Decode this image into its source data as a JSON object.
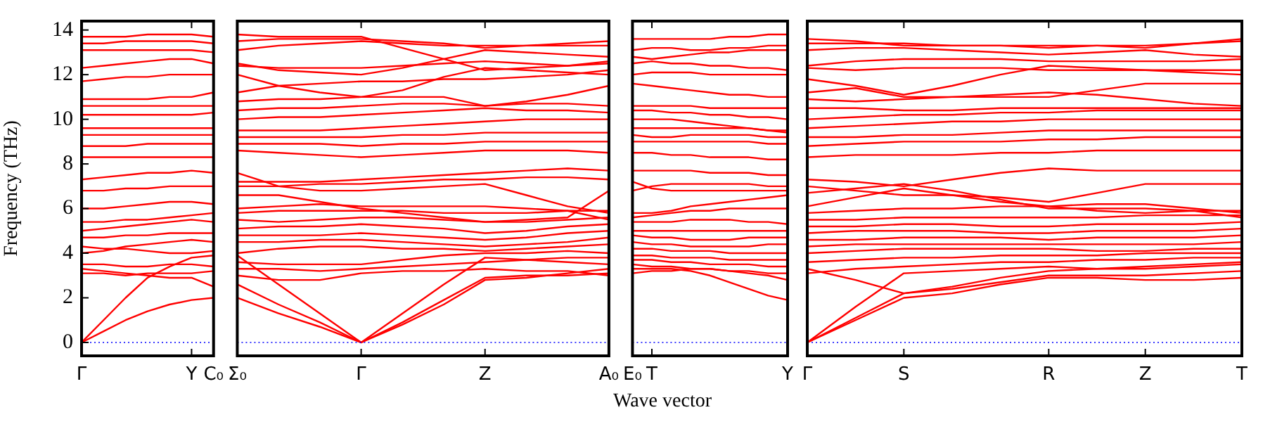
{
  "chart_data": [
    {
      "type": "line",
      "ylabel": "Frequency (THz)",
      "categories": [
        "Γ",
        null,
        null,
        null,
        null,
        "Y",
        "C₀"
      ],
      "ylim": [
        -0.6,
        14.4
      ],
      "yticks": [
        0,
        2,
        4,
        6,
        8,
        10,
        12,
        14
      ],
      "legend": false,
      "grid": false,
      "marker": "none",
      "line_style": "solid",
      "ref_lines": [
        {
          "axis": "y",
          "value": 0,
          "color": "#0000ff",
          "line_style": "dotted"
        }
      ],
      "series": [
        {
          "color": "#ff0000",
          "values": [
            0,
            0.5,
            1.0,
            1.4,
            1.7,
            1.9,
            2.0
          ]
        },
        {
          "color": "#ff0000",
          "values": [
            0,
            1.0,
            2.0,
            2.9,
            3.4,
            3.8,
            3.9
          ]
        },
        {
          "color": "#ff0000",
          "values": [
            3.3,
            3.2,
            3.1,
            3.0,
            2.9,
            2.9,
            2.5
          ]
        },
        {
          "color": "#ff0000",
          "values": [
            3.1,
            3.1,
            3.0,
            3.1,
            3.1,
            3.1,
            3.2
          ]
        },
        {
          "color": "#ff0000",
          "values": [
            3.5,
            3.5,
            3.4,
            3.4,
            3.5,
            3.5,
            3.4
          ]
        },
        {
          "color": "#ff0000",
          "values": [
            4.0,
            4.1,
            4.3,
            4.4,
            4.5,
            4.6,
            4.5
          ]
        },
        {
          "color": "#ff0000",
          "values": [
            4.3,
            4.2,
            4.2,
            4.1,
            4.0,
            4.0,
            4.1
          ]
        },
        {
          "color": "#ff0000",
          "values": [
            4.7,
            4.7,
            4.8,
            4.8,
            4.9,
            4.9,
            4.9
          ]
        },
        {
          "color": "#ff0000",
          "values": [
            5.0,
            5.1,
            5.2,
            5.3,
            5.4,
            5.5,
            5.4
          ]
        },
        {
          "color": "#ff0000",
          "values": [
            5.4,
            5.4,
            5.5,
            5.5,
            5.6,
            5.7,
            5.8
          ]
        },
        {
          "color": "#ff0000",
          "values": [
            6.0,
            6.0,
            6.1,
            6.2,
            6.3,
            6.3,
            6.2
          ]
        },
        {
          "color": "#ff0000",
          "values": [
            6.8,
            6.8,
            6.9,
            6.9,
            7.0,
            7.0,
            7.0
          ]
        },
        {
          "color": "#ff0000",
          "values": [
            7.3,
            7.4,
            7.5,
            7.6,
            7.6,
            7.7,
            7.6
          ]
        },
        {
          "color": "#ff0000",
          "values": [
            8.3,
            8.3,
            8.3,
            8.3,
            8.3,
            8.3,
            8.3
          ]
        },
        {
          "color": "#ff0000",
          "values": [
            8.8,
            8.8,
            8.8,
            8.9,
            8.9,
            8.9,
            8.9
          ]
        },
        {
          "color": "#ff0000",
          "values": [
            9.3,
            9.3,
            9.3,
            9.3,
            9.3,
            9.3,
            9.3
          ]
        },
        {
          "color": "#ff0000",
          "values": [
            9.6,
            9.6,
            9.6,
            9.6,
            9.6,
            9.6,
            9.6
          ]
        },
        {
          "color": "#ff0000",
          "values": [
            10.2,
            10.2,
            10.2,
            10.2,
            10.2,
            10.2,
            10.3
          ]
        },
        {
          "color": "#ff0000",
          "values": [
            10.6,
            10.6,
            10.6,
            10.6,
            10.6,
            10.6,
            10.6
          ]
        },
        {
          "color": "#ff0000",
          "values": [
            10.9,
            10.9,
            10.9,
            10.9,
            11.0,
            11.0,
            11.2
          ]
        },
        {
          "color": "#ff0000",
          "values": [
            11.7,
            11.8,
            11.9,
            11.9,
            12.0,
            12.0,
            12.0
          ]
        },
        {
          "color": "#ff0000",
          "values": [
            12.3,
            12.4,
            12.5,
            12.6,
            12.7,
            12.7,
            12.5
          ]
        },
        {
          "color": "#ff0000",
          "values": [
            13.1,
            13.1,
            13.1,
            13.1,
            13.1,
            13.1,
            13.0
          ]
        },
        {
          "color": "#ff0000",
          "values": [
            13.4,
            13.4,
            13.5,
            13.5,
            13.5,
            13.5,
            13.4
          ]
        },
        {
          "color": "#ff0000",
          "values": [
            13.7,
            13.7,
            13.7,
            13.8,
            13.8,
            13.8,
            13.7
          ]
        }
      ]
    },
    {
      "type": "line",
      "tick_labels": "x",
      "categories": [
        "Σ₀",
        null,
        null,
        "Γ",
        null,
        null,
        "Z",
        null,
        null,
        "A₀"
      ],
      "ylim": [
        -0.6,
        14.4
      ],
      "yticks": [
        0,
        2,
        4,
        6,
        8,
        10,
        12,
        14
      ],
      "legend": false,
      "grid": false,
      "marker": "none",
      "line_style": "solid",
      "ref_lines": [
        {
          "axis": "y",
          "value": 0,
          "color": "#0000ff",
          "line_style": "dotted"
        }
      ],
      "series": [
        {
          "color": "#ff0000",
          "values": [
            2.0,
            1.3,
            0.7,
            0,
            0.9,
            1.9,
            2.9,
            3.0,
            3.0,
            3.1
          ]
        },
        {
          "color": "#ff0000",
          "values": [
            2.6,
            1.7,
            0.9,
            0,
            0.8,
            1.7,
            2.8,
            2.9,
            3.1,
            3.3
          ]
        },
        {
          "color": "#ff0000",
          "values": [
            3.9,
            2.6,
            1.3,
            0,
            1.3,
            2.6,
            3.8,
            3.7,
            3.6,
            3.5
          ]
        },
        {
          "color": "#ff0000",
          "values": [
            3.0,
            2.8,
            2.8,
            3.1,
            3.2,
            3.2,
            3.3,
            3.2,
            3.2,
            3.0
          ]
        },
        {
          "color": "#ff0000",
          "values": [
            3.3,
            3.3,
            3.2,
            3.3,
            3.4,
            3.5,
            3.6,
            3.7,
            3.8,
            3.8
          ]
        },
        {
          "color": "#ff0000",
          "values": [
            3.6,
            3.5,
            3.5,
            3.5,
            3.7,
            3.9,
            4.0,
            4.0,
            4.1,
            4.0
          ]
        },
        {
          "color": "#ff0000",
          "values": [
            4.0,
            4.2,
            4.3,
            4.3,
            4.2,
            4.2,
            4.1,
            4.2,
            4.3,
            4.4
          ]
        },
        {
          "color": "#ff0000",
          "values": [
            4.5,
            4.5,
            4.6,
            4.6,
            4.5,
            4.4,
            4.3,
            4.4,
            4.5,
            4.7
          ]
        },
        {
          "color": "#ff0000",
          "values": [
            4.8,
            4.8,
            4.8,
            4.9,
            4.8,
            4.7,
            4.6,
            4.7,
            4.9,
            5.0
          ]
        },
        {
          "color": "#ff0000",
          "values": [
            5.1,
            5.2,
            5.2,
            5.3,
            5.2,
            5.1,
            4.9,
            5.0,
            5.2,
            5.3
          ]
        },
        {
          "color": "#ff0000",
          "values": [
            5.5,
            5.4,
            5.5,
            5.6,
            5.6,
            5.5,
            5.4,
            5.4,
            5.5,
            5.6
          ]
        },
        {
          "color": "#ff0000",
          "values": [
            5.8,
            5.9,
            5.9,
            5.9,
            5.9,
            5.8,
            5.8,
            5.8,
            5.9,
            5.9
          ]
        },
        {
          "color": "#ff0000",
          "values": [
            6.0,
            6.1,
            6.2,
            6.1,
            6.1,
            6.1,
            6.1,
            6.0,
            5.9,
            5.5
          ]
        },
        {
          "color": "#ff0000",
          "values": [
            6.6,
            6.6,
            6.3,
            6.0,
            5.8,
            5.6,
            5.4,
            5.5,
            5.6,
            6.8
          ]
        },
        {
          "color": "#ff0000",
          "values": [
            7.6,
            7.0,
            6.8,
            6.8,
            6.9,
            7.0,
            7.1,
            6.6,
            6.1,
            5.8
          ]
        },
        {
          "color": "#ff0000",
          "values": [
            7.0,
            7.0,
            7.1,
            7.1,
            7.2,
            7.3,
            7.3,
            7.4,
            7.4,
            7.3
          ]
        },
        {
          "color": "#ff0000",
          "values": [
            7.2,
            7.2,
            7.2,
            7.3,
            7.4,
            7.5,
            7.6,
            7.7,
            7.8,
            7.7
          ]
        },
        {
          "color": "#ff0000",
          "values": [
            8.6,
            8.5,
            8.4,
            8.3,
            8.4,
            8.5,
            8.6,
            8.6,
            8.6,
            8.5
          ]
        },
        {
          "color": "#ff0000",
          "values": [
            8.9,
            8.9,
            8.9,
            8.8,
            8.9,
            8.9,
            9.0,
            9.0,
            9.0,
            9.0
          ]
        },
        {
          "color": "#ff0000",
          "values": [
            9.2,
            9.2,
            9.2,
            9.2,
            9.3,
            9.3,
            9.4,
            9.4,
            9.4,
            9.4
          ]
        },
        {
          "color": "#ff0000",
          "values": [
            9.5,
            9.5,
            9.5,
            9.6,
            9.7,
            9.8,
            9.9,
            10.0,
            10.0,
            10.0
          ]
        },
        {
          "color": "#ff0000",
          "values": [
            10.0,
            10.1,
            10.1,
            10.2,
            10.3,
            10.4,
            10.5,
            10.4,
            10.4,
            10.3
          ]
        },
        {
          "color": "#ff0000",
          "values": [
            10.4,
            10.5,
            10.5,
            10.6,
            10.7,
            10.7,
            10.6,
            10.7,
            10.7,
            10.6
          ]
        },
        {
          "color": "#ff0000",
          "values": [
            10.8,
            10.9,
            10.9,
            11.0,
            11.0,
            11.0,
            10.6,
            10.8,
            11.1,
            11.5
          ]
        },
        {
          "color": "#ff0000",
          "values": [
            11.2,
            11.5,
            11.6,
            11.7,
            11.7,
            11.8,
            11.8,
            11.9,
            12.0,
            12.2
          ]
        },
        {
          "color": "#ff0000",
          "values": [
            12.0,
            11.5,
            11.2,
            11.0,
            11.3,
            11.9,
            12.3,
            12.2,
            12.1,
            12.0
          ]
        },
        {
          "color": "#ff0000",
          "values": [
            12.4,
            12.3,
            12.3,
            12.3,
            12.4,
            12.5,
            12.6,
            12.5,
            12.4,
            12.5
          ]
        },
        {
          "color": "#ff0000",
          "values": [
            12.5,
            12.2,
            12.1,
            12.0,
            12.3,
            12.7,
            13.1,
            13.0,
            12.9,
            12.8
          ]
        },
        {
          "color": "#ff0000",
          "values": [
            13.1,
            13.3,
            13.4,
            13.5,
            13.4,
            13.3,
            13.3,
            13.3,
            13.3,
            13.3
          ]
        },
        {
          "color": "#ff0000",
          "values": [
            13.5,
            13.6,
            13.6,
            13.6,
            13.5,
            13.4,
            13.2,
            13.3,
            13.4,
            13.5
          ]
        },
        {
          "color": "#ff0000",
          "values": [
            13.8,
            13.7,
            13.7,
            13.7,
            13.2,
            12.7,
            12.2,
            12.3,
            12.4,
            12.6
          ]
        }
      ]
    },
    {
      "type": "line",
      "tick_labels": "x",
      "xlabel": "Wave vector",
      "categories": [
        "E₀",
        "T",
        null,
        null,
        null,
        null,
        null,
        null,
        "Y"
      ],
      "ylim": [
        -0.6,
        14.4
      ],
      "yticks": [
        0,
        2,
        4,
        6,
        8,
        10,
        12,
        14
      ],
      "legend": false,
      "grid": false,
      "marker": "none",
      "line_style": "solid",
      "ref_lines": [
        {
          "axis": "y",
          "value": 0,
          "color": "#0000ff",
          "line_style": "dotted"
        }
      ],
      "series": [
        {
          "color": "#ff0000",
          "values": [
            3.3,
            3.3,
            3.3,
            3.2,
            3.0,
            2.7,
            2.4,
            2.1,
            1.9
          ]
        },
        {
          "color": "#ff0000",
          "values": [
            3.1,
            3.2,
            3.2,
            3.3,
            3.3,
            3.2,
            3.1,
            3.0,
            2.8
          ]
        },
        {
          "color": "#ff0000",
          "values": [
            3.5,
            3.4,
            3.4,
            3.3,
            3.3,
            3.2,
            3.2,
            3.1,
            3.1
          ]
        },
        {
          "color": "#ff0000",
          "values": [
            3.7,
            3.7,
            3.6,
            3.6,
            3.5,
            3.5,
            3.5,
            3.4,
            3.4
          ]
        },
        {
          "color": "#ff0000",
          "values": [
            3.9,
            3.9,
            3.8,
            3.8,
            3.8,
            3.7,
            3.7,
            3.7,
            3.7
          ]
        },
        {
          "color": "#ff0000",
          "values": [
            4.2,
            4.2,
            4.1,
            4.1,
            4.1,
            4.0,
            4.0,
            4.0,
            4.0
          ]
        },
        {
          "color": "#ff0000",
          "values": [
            4.5,
            4.4,
            4.4,
            4.3,
            4.3,
            4.3,
            4.3,
            4.4,
            4.4
          ]
        },
        {
          "color": "#ff0000",
          "values": [
            4.8,
            4.7,
            4.7,
            4.6,
            4.6,
            4.6,
            4.7,
            4.7,
            4.7
          ]
        },
        {
          "color": "#ff0000",
          "values": [
            5.0,
            5.0,
            5.0,
            5.0,
            5.0,
            5.0,
            5.0,
            5.0,
            5.0
          ]
        },
        {
          "color": "#ff0000",
          "values": [
            5.4,
            5.4,
            5.4,
            5.5,
            5.5,
            5.5,
            5.4,
            5.4,
            5.3
          ]
        },
        {
          "color": "#ff0000",
          "values": [
            5.6,
            5.7,
            5.8,
            5.9,
            5.9,
            6.0,
            6.0,
            6.0,
            6.0
          ]
        },
        {
          "color": "#ff0000",
          "values": [
            5.8,
            5.8,
            5.9,
            6.1,
            6.2,
            6.3,
            6.4,
            6.5,
            6.6
          ]
        },
        {
          "color": "#ff0000",
          "values": [
            7.2,
            6.9,
            6.8,
            6.8,
            6.8,
            6.8,
            6.8,
            6.8,
            6.8
          ]
        },
        {
          "color": "#ff0000",
          "values": [
            6.8,
            7.0,
            7.1,
            7.1,
            7.1,
            7.1,
            7.1,
            7.0,
            7.0
          ]
        },
        {
          "color": "#ff0000",
          "values": [
            7.7,
            7.7,
            7.7,
            7.7,
            7.6,
            7.6,
            7.6,
            7.5,
            7.5
          ]
        },
        {
          "color": "#ff0000",
          "values": [
            8.5,
            8.5,
            8.4,
            8.4,
            8.3,
            8.3,
            8.3,
            8.2,
            8.2
          ]
        },
        {
          "color": "#ff0000",
          "values": [
            9.0,
            9.0,
            9.0,
            9.0,
            9.0,
            9.0,
            9.0,
            8.9,
            8.9
          ]
        },
        {
          "color": "#ff0000",
          "values": [
            9.3,
            9.2,
            9.2,
            9.3,
            9.3,
            9.3,
            9.3,
            9.2,
            9.2
          ]
        },
        {
          "color": "#ff0000",
          "values": [
            9.6,
            9.6,
            9.6,
            9.6,
            9.6,
            9.6,
            9.6,
            9.5,
            9.5
          ]
        },
        {
          "color": "#ff0000",
          "values": [
            10.0,
            10.0,
            10.0,
            9.9,
            9.8,
            9.7,
            9.6,
            9.5,
            9.4
          ]
        },
        {
          "color": "#ff0000",
          "values": [
            10.4,
            10.4,
            10.3,
            10.3,
            10.2,
            10.2,
            10.1,
            10.1,
            10.0
          ]
        },
        {
          "color": "#ff0000",
          "values": [
            10.6,
            10.6,
            10.6,
            10.6,
            10.5,
            10.5,
            10.5,
            10.5,
            10.5
          ]
        },
        {
          "color": "#ff0000",
          "values": [
            11.6,
            11.5,
            11.4,
            11.3,
            11.2,
            11.1,
            11.1,
            11.0,
            11.0
          ]
        },
        {
          "color": "#ff0000",
          "values": [
            12.0,
            12.1,
            12.1,
            12.1,
            12.0,
            12.0,
            12.0,
            12.0,
            12.0
          ]
        },
        {
          "color": "#ff0000",
          "values": [
            12.5,
            12.6,
            12.5,
            12.5,
            12.4,
            12.4,
            12.3,
            12.3,
            12.2
          ]
        },
        {
          "color": "#ff0000",
          "values": [
            12.8,
            12.7,
            12.8,
            12.9,
            13.0,
            13.0,
            13.1,
            13.1,
            13.1
          ]
        },
        {
          "color": "#ff0000",
          "values": [
            13.1,
            13.2,
            13.2,
            13.1,
            13.1,
            13.2,
            13.2,
            13.3,
            13.3
          ]
        },
        {
          "color": "#ff0000",
          "values": [
            13.6,
            13.6,
            13.6,
            13.6,
            13.6,
            13.7,
            13.7,
            13.8,
            13.8
          ]
        }
      ]
    },
    {
      "type": "line",
      "tick_labels": "x",
      "categories": [
        "Γ",
        null,
        "S",
        null,
        null,
        "R",
        null,
        "Z",
        null,
        "T"
      ],
      "ylim": [
        -0.6,
        14.4
      ],
      "yticks": [
        0,
        2,
        4,
        6,
        8,
        10,
        12,
        14
      ],
      "legend": false,
      "grid": false,
      "marker": "none",
      "line_style": "solid",
      "ref_lines": [
        {
          "axis": "y",
          "value": 0,
          "color": "#0000ff",
          "line_style": "dotted"
        }
      ],
      "series": [
        {
          "color": "#ff0000",
          "values": [
            0,
            1.6,
            3.1,
            3.2,
            3.3,
            3.4,
            3.3,
            3.3,
            3.4,
            3.5
          ]
        },
        {
          "color": "#ff0000",
          "values": [
            0,
            1.1,
            2.2,
            2.4,
            2.7,
            3.0,
            3.0,
            3.0,
            3.1,
            3.2
          ]
        },
        {
          "color": "#ff0000",
          "values": [
            0,
            1.0,
            2.0,
            2.2,
            2.6,
            2.9,
            2.9,
            2.8,
            2.8,
            2.9
          ]
        },
        {
          "color": "#ff0000",
          "values": [
            3.3,
            2.8,
            2.2,
            2.5,
            2.9,
            3.2,
            3.3,
            3.4,
            3.5,
            3.6
          ]
        },
        {
          "color": "#ff0000",
          "values": [
            3.1,
            3.3,
            3.4,
            3.5,
            3.6,
            3.6,
            3.7,
            3.7,
            3.8,
            3.8
          ]
        },
        {
          "color": "#ff0000",
          "values": [
            3.6,
            3.7,
            3.8,
            3.8,
            3.9,
            3.9,
            3.9,
            4.0,
            4.0,
            4.0
          ]
        },
        {
          "color": "#ff0000",
          "values": [
            4.0,
            4.1,
            4.2,
            4.2,
            4.2,
            4.2,
            4.1,
            4.1,
            4.2,
            4.2
          ]
        },
        {
          "color": "#ff0000",
          "values": [
            4.3,
            4.4,
            4.4,
            4.4,
            4.4,
            4.4,
            4.4,
            4.4,
            4.4,
            4.5
          ]
        },
        {
          "color": "#ff0000",
          "values": [
            4.6,
            4.6,
            4.7,
            4.7,
            4.7,
            4.6,
            4.7,
            4.7,
            4.7,
            4.8
          ]
        },
        {
          "color": "#ff0000",
          "values": [
            4.9,
            5.0,
            5.0,
            5.0,
            4.9,
            4.9,
            5.0,
            5.0,
            5.0,
            5.1
          ]
        },
        {
          "color": "#ff0000",
          "values": [
            5.2,
            5.2,
            5.3,
            5.3,
            5.2,
            5.2,
            5.3,
            5.3,
            5.3,
            5.4
          ]
        },
        {
          "color": "#ff0000",
          "values": [
            5.5,
            5.5,
            5.6,
            5.6,
            5.6,
            5.6,
            5.6,
            5.7,
            5.7,
            5.7
          ]
        },
        {
          "color": "#ff0000",
          "values": [
            5.8,
            5.9,
            6.0,
            6.0,
            6.1,
            6.1,
            6.2,
            6.2,
            6.0,
            5.8
          ]
        },
        {
          "color": "#ff0000",
          "values": [
            6.1,
            6.5,
            6.9,
            6.6,
            6.3,
            6.1,
            5.9,
            5.8,
            5.9,
            5.6
          ]
        },
        {
          "color": "#ff0000",
          "values": [
            6.7,
            6.9,
            7.1,
            6.8,
            6.4,
            6.0,
            6.0,
            6.0,
            5.9,
            5.9
          ]
        },
        {
          "color": "#ff0000",
          "values": [
            7.0,
            6.8,
            6.6,
            6.6,
            6.5,
            6.3,
            6.7,
            7.1,
            7.1,
            7.1
          ]
        },
        {
          "color": "#ff0000",
          "values": [
            7.3,
            7.2,
            7.0,
            7.3,
            7.6,
            7.8,
            7.7,
            7.7,
            7.7,
            7.7
          ]
        },
        {
          "color": "#ff0000",
          "values": [
            8.3,
            8.4,
            8.4,
            8.4,
            8.5,
            8.5,
            8.6,
            8.6,
            8.6,
            8.6
          ]
        },
        {
          "color": "#ff0000",
          "values": [
            8.8,
            8.9,
            9.0,
            9.0,
            9.0,
            9.1,
            9.1,
            9.2,
            9.2,
            9.2
          ]
        },
        {
          "color": "#ff0000",
          "values": [
            9.2,
            9.2,
            9.3,
            9.3,
            9.4,
            9.5,
            9.5,
            9.5,
            9.5,
            9.5
          ]
        },
        {
          "color": "#ff0000",
          "values": [
            9.6,
            9.7,
            9.8,
            9.9,
            9.9,
            10.0,
            10.0,
            10.0,
            10.0,
            10.0
          ]
        },
        {
          "color": "#ff0000",
          "values": [
            10.0,
            10.1,
            10.2,
            10.2,
            10.3,
            10.3,
            10.4,
            10.4,
            10.4,
            10.4
          ]
        },
        {
          "color": "#ff0000",
          "values": [
            10.5,
            10.5,
            10.4,
            10.4,
            10.5,
            10.5,
            10.5,
            10.5,
            10.5,
            10.5
          ]
        },
        {
          "color": "#ff0000",
          "values": [
            10.9,
            10.8,
            10.9,
            11.0,
            11.1,
            11.2,
            11.1,
            10.9,
            10.7,
            10.6
          ]
        },
        {
          "color": "#ff0000",
          "values": [
            11.2,
            11.4,
            11.0,
            11.0,
            11.0,
            11.0,
            11.3,
            11.6,
            11.6,
            11.6
          ]
        },
        {
          "color": "#ff0000",
          "values": [
            11.8,
            11.5,
            11.1,
            11.5,
            12.0,
            12.4,
            12.3,
            12.2,
            12.1,
            12.0
          ]
        },
        {
          "color": "#ff0000",
          "values": [
            12.3,
            12.2,
            12.3,
            12.3,
            12.3,
            12.2,
            12.2,
            12.2,
            12.2,
            12.2
          ]
        },
        {
          "color": "#ff0000",
          "values": [
            12.4,
            12.6,
            12.7,
            12.7,
            12.7,
            12.6,
            12.6,
            12.6,
            12.6,
            12.7
          ]
        },
        {
          "color": "#ff0000",
          "values": [
            13.1,
            13.2,
            13.2,
            13.1,
            13.0,
            12.9,
            13.0,
            13.1,
            12.9,
            12.8
          ]
        },
        {
          "color": "#ff0000",
          "values": [
            13.4,
            13.4,
            13.4,
            13.3,
            13.3,
            13.2,
            13.3,
            13.3,
            13.4,
            13.5
          ]
        },
        {
          "color": "#ff0000",
          "values": [
            13.6,
            13.5,
            13.3,
            13.3,
            13.3,
            13.3,
            13.3,
            13.2,
            13.4,
            13.6
          ]
        }
      ]
    }
  ]
}
